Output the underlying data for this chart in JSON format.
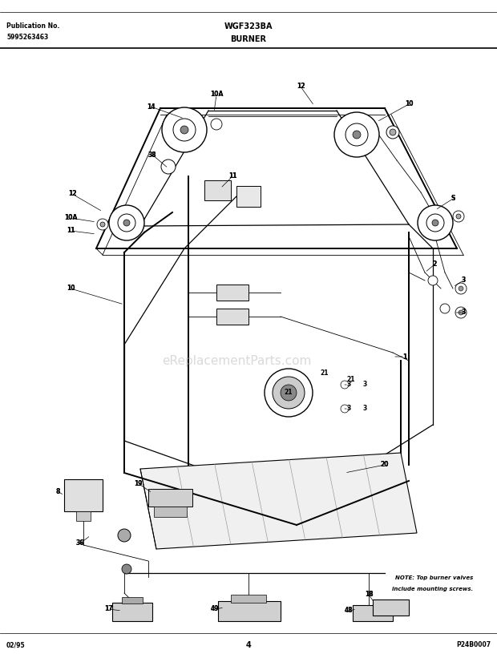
{
  "page_width": 6.2,
  "page_height": 8.26,
  "dpi": 100,
  "bg_color": "#ffffff",
  "pub_no_label": "Publication No.",
  "pub_no_value": "5995263463",
  "model_label": "WGF323BA",
  "section_label": "BURNER",
  "date_label": "02/95",
  "page_number": "4",
  "part_number": "P24B0007",
  "note_line1": "NOTE: Top burner valves",
  "note_line2": "include mounting screws.",
  "watermark": "eReplacementParts.com"
}
